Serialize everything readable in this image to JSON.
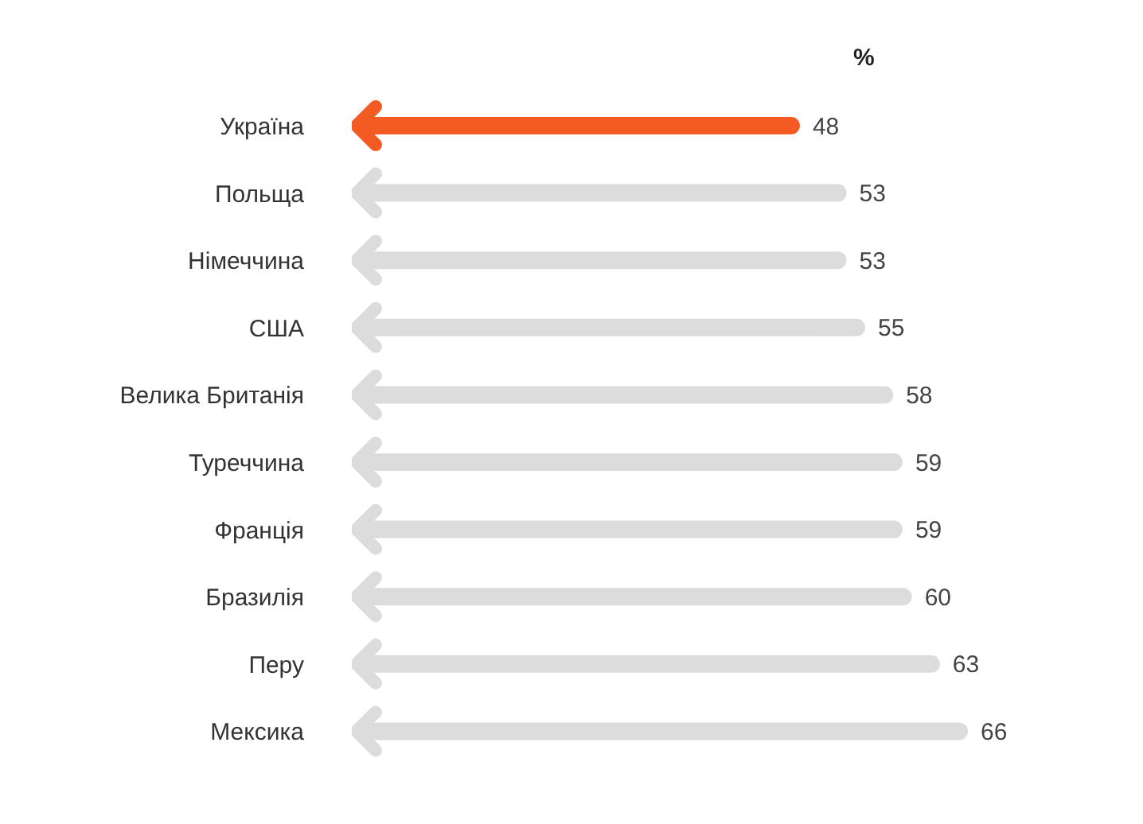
{
  "chart_data": {
    "type": "bar",
    "orientation": "horizontal",
    "xlabel": "%",
    "categories": [
      "Україна",
      "Польща",
      "Німеччина",
      "США",
      "Велика Британія",
      "Туреччина",
      "Франція",
      "Бразилія",
      "Перу",
      "Мексика"
    ],
    "values": [
      48,
      53,
      53,
      55,
      58,
      59,
      59,
      60,
      63,
      66
    ],
    "colors": [
      "#f35b22",
      "#dcdcdc",
      "#dcdcdc",
      "#dcdcdc",
      "#dcdcdc",
      "#dcdcdc",
      "#dcdcdc",
      "#dcdcdc",
      "#dcdcdc",
      "#dcdcdc"
    ],
    "data_labels": true
  }
}
